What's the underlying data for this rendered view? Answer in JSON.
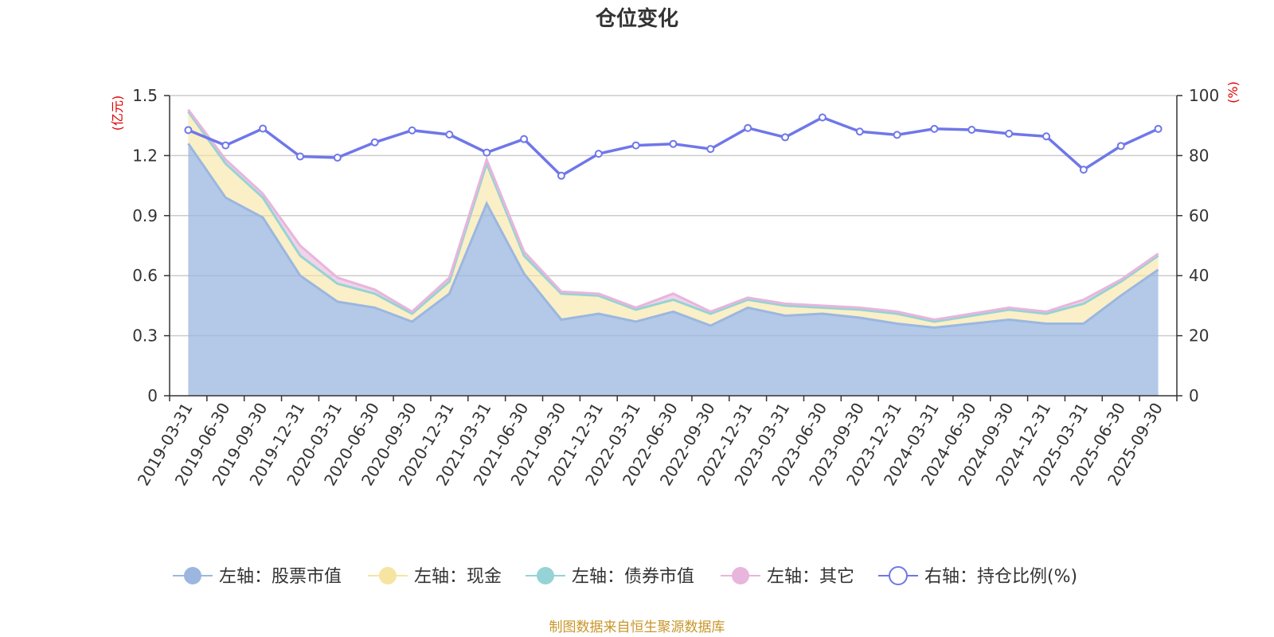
{
  "chart_data": {
    "type": "area",
    "title": "仓位变化",
    "left_unit": "(亿元)",
    "right_unit": "(%)",
    "left_ylim": [
      0,
      1.5
    ],
    "left_ticks": [
      "0",
      "0.3",
      "0.6",
      "0.9",
      "1.2",
      "1.5"
    ],
    "right_ylim": [
      0,
      100
    ],
    "right_ticks": [
      "0",
      "20",
      "40",
      "60",
      "80",
      "100"
    ],
    "categories": [
      "2019-03-31",
      "2019-06-30",
      "2019-09-30",
      "2019-12-31",
      "2020-03-31",
      "2020-06-30",
      "2020-09-30",
      "2020-12-31",
      "2021-03-31",
      "2021-06-30",
      "2021-09-30",
      "2021-12-31",
      "2022-03-31",
      "2022-06-30",
      "2022-09-30",
      "2022-12-31",
      "2023-03-31",
      "2023-06-30",
      "2023-09-30",
      "2023-12-31",
      "2024-03-31",
      "2024-06-30",
      "2024-09-30",
      "2024-12-31",
      "2025-03-31",
      "2025-06-30",
      "2025-09-30"
    ],
    "series": [
      {
        "name": "左轴：股票市值",
        "axis": "left",
        "color": "#9bb7e0",
        "values": [
          1.26,
          0.99,
          0.89,
          0.6,
          0.47,
          0.44,
          0.37,
          0.51,
          0.96,
          0.61,
          0.38,
          0.41,
          0.37,
          0.42,
          0.35,
          0.44,
          0.4,
          0.41,
          0.39,
          0.36,
          0.34,
          0.36,
          0.38,
          0.36,
          0.36,
          0.5,
          0.63
        ]
      },
      {
        "name": "左轴：现金",
        "axis": "left",
        "color": "#f7e4a0",
        "values": [
          0.16,
          0.17,
          0.1,
          0.1,
          0.09,
          0.07,
          0.04,
          0.06,
          0.2,
          0.09,
          0.13,
          0.09,
          0.06,
          0.06,
          0.06,
          0.04,
          0.05,
          0.03,
          0.04,
          0.05,
          0.03,
          0.04,
          0.05,
          0.05,
          0.1,
          0.07,
          0.07
        ]
      },
      {
        "name": "左轴：债券市值",
        "axis": "left",
        "color": "#95d3d6",
        "values": [
          0,
          0,
          0,
          0,
          0,
          0,
          0,
          0,
          0,
          0,
          0,
          0,
          0,
          0,
          0,
          0,
          0,
          0,
          0,
          0,
          0,
          0,
          0,
          0,
          0,
          0,
          0
        ]
      },
      {
        "name": "左轴：其它",
        "axis": "left",
        "color": "#e8b5dc",
        "values": [
          0.01,
          0.02,
          0.02,
          0.05,
          0.03,
          0.02,
          0.01,
          0.02,
          0.02,
          0.02,
          0.01,
          0.01,
          0.01,
          0.03,
          0.01,
          0.01,
          0.01,
          0.01,
          0.01,
          0.01,
          0.01,
          0.01,
          0.01,
          0.01,
          0.02,
          0.01,
          0.01
        ]
      },
      {
        "name": "右轴：持仓比例(%)",
        "axis": "right",
        "color": "#6f77e8",
        "values": [
          88.5,
          83.4,
          89,
          79.7,
          79.3,
          84.4,
          88.4,
          87,
          81,
          85.5,
          73.3,
          80.6,
          83.4,
          83.9,
          82.2,
          89.2,
          86.1,
          92.7,
          88,
          86.9,
          88.9,
          88.6,
          87.3,
          86.4,
          75.3,
          83.2,
          88.9
        ]
      }
    ],
    "source": "制图数据来自恒生聚源数据库"
  }
}
